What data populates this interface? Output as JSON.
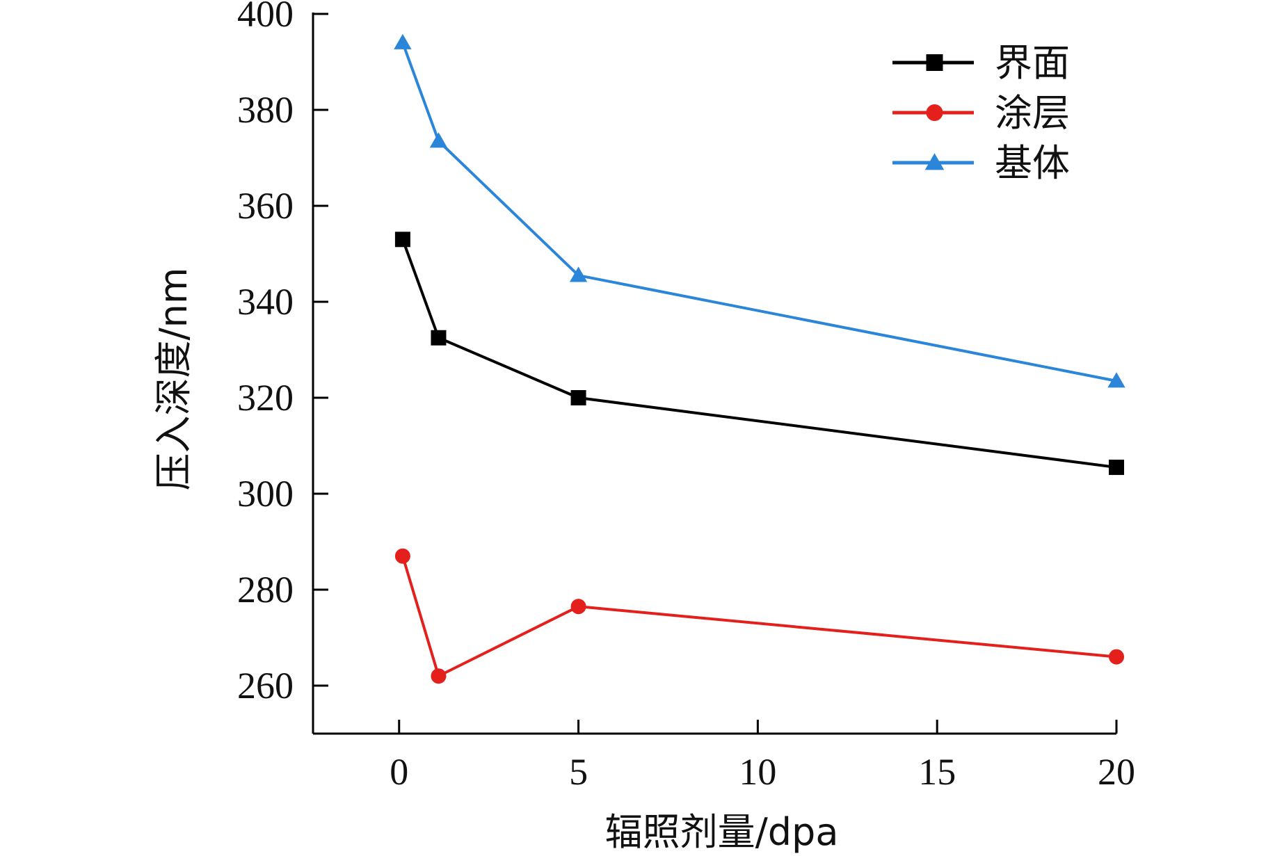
{
  "chart_data": {
    "type": "line",
    "title": "",
    "xlabel": "辐照剂量/dpa",
    "ylabel": "压入深度/nm",
    "xlim": [
      -2.4,
      20
    ],
    "ylim": [
      250,
      400
    ],
    "xticks": [
      0,
      5,
      10,
      15,
      20
    ],
    "yticks": [
      260,
      280,
      300,
      320,
      340,
      360,
      380,
      400
    ],
    "grid": false,
    "legend_position": "top-right",
    "series": [
      {
        "name": "界面",
        "color": "#000000",
        "marker": "square",
        "x": [
          0.1,
          1.1,
          5,
          20
        ],
        "y": [
          353,
          332.5,
          320,
          305.5
        ]
      },
      {
        "name": "涂层",
        "color": "#e3201b",
        "marker": "circle",
        "x": [
          0.1,
          1.1,
          5,
          20
        ],
        "y": [
          287,
          262,
          276.5,
          266
        ]
      },
      {
        "name": "基体",
        "color": "#2b86d9",
        "marker": "triangle",
        "x": [
          0.1,
          1.1,
          5,
          20
        ],
        "y": [
          394,
          373.5,
          345.5,
          323.5
        ]
      }
    ]
  }
}
